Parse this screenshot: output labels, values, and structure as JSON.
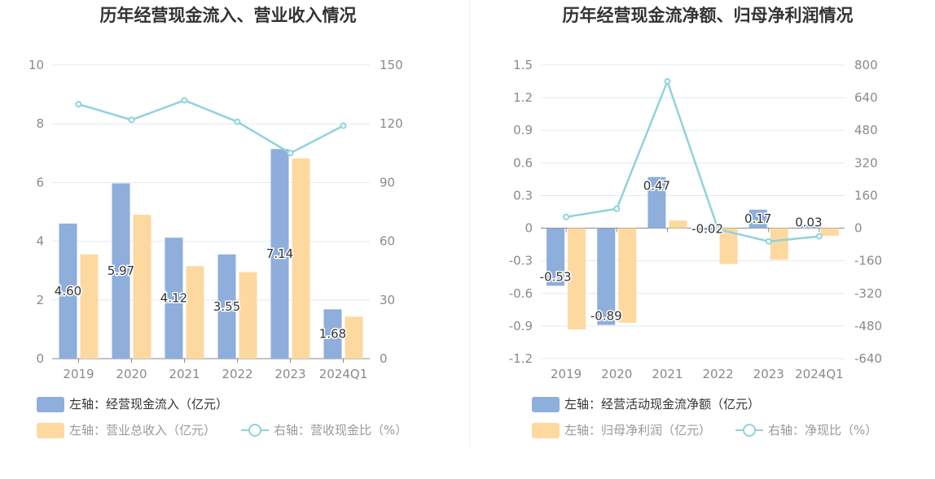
{
  "colors": {
    "bar_primary": "#8eaedb",
    "bar_secondary": "#fdd9a0",
    "line": "#8fd3dc",
    "grid": "#e4e8f3",
    "axis": "#8a8a8a"
  },
  "chart_data": [
    {
      "type": "bar",
      "title": "历年经营现金流入、营业收入情况",
      "categories": [
        "2019",
        "2020",
        "2021",
        "2022",
        "2023",
        "2024Q1"
      ],
      "left_axis": {
        "ylim": [
          0,
          10
        ],
        "ticks": [
          "0",
          "2",
          "4",
          "6",
          "8",
          "10"
        ]
      },
      "right_axis": {
        "ylim": [
          0,
          150
        ],
        "ticks": [
          "0",
          "30",
          "60",
          "90",
          "120",
          "150"
        ]
      },
      "series": [
        {
          "name": "左轴：经营现金流入（亿元）",
          "type": "bar",
          "axis": "left",
          "values": [
            4.6,
            5.97,
            4.12,
            3.55,
            7.14,
            1.68
          ],
          "labels": [
            "4.60",
            "5.97",
            "4.12",
            "3.55",
            "7.14",
            "1.68"
          ]
        },
        {
          "name": "左轴：营业总收入（亿元）",
          "type": "bar",
          "axis": "left",
          "values": [
            3.55,
            4.9,
            3.15,
            2.95,
            6.82,
            1.43
          ]
        },
        {
          "name": "右轴：营收现金比（%）",
          "type": "line",
          "axis": "right",
          "values": [
            130,
            122,
            132,
            121,
            105,
            119
          ]
        }
      ],
      "legend_position": "bottom-left",
      "grid": true
    },
    {
      "type": "bar",
      "title": "历年经营现金流净额、归母净利润情况",
      "categories": [
        "2019",
        "2020",
        "2021",
        "2022",
        "2023",
        "2024Q1"
      ],
      "left_axis": {
        "ylim": [
          -1.2,
          1.5
        ],
        "ticks": [
          "-1.2",
          "-0.9",
          "-0.6",
          "-0.3",
          "0",
          "0.3",
          "0.6",
          "0.9",
          "1.2",
          "1.5"
        ]
      },
      "right_axis": {
        "ylim": [
          -640,
          800
        ],
        "ticks": [
          "-640",
          "-480",
          "-320",
          "-160",
          "0",
          "160",
          "320",
          "480",
          "640",
          "800"
        ]
      },
      "series": [
        {
          "name": "左轴：经营活动现金流净额（亿元）",
          "type": "bar",
          "axis": "left",
          "values": [
            -0.53,
            -0.89,
            0.47,
            -0.02,
            0.17,
            0.03
          ],
          "labels": [
            "-0.53",
            "-0.89",
            "0.47",
            "-0.02",
            "0.17",
            "0.03"
          ]
        },
        {
          "name": "左轴：归母净利润（亿元）",
          "type": "bar",
          "axis": "left",
          "values": [
            -0.93,
            -0.87,
            0.07,
            -0.33,
            -0.29,
            -0.07
          ]
        },
        {
          "name": "右轴：净现比（%）",
          "type": "line",
          "axis": "right",
          "values": [
            55,
            95,
            720,
            -5,
            -65,
            -40
          ]
        }
      ],
      "legend_position": "bottom-left",
      "grid": true
    }
  ]
}
